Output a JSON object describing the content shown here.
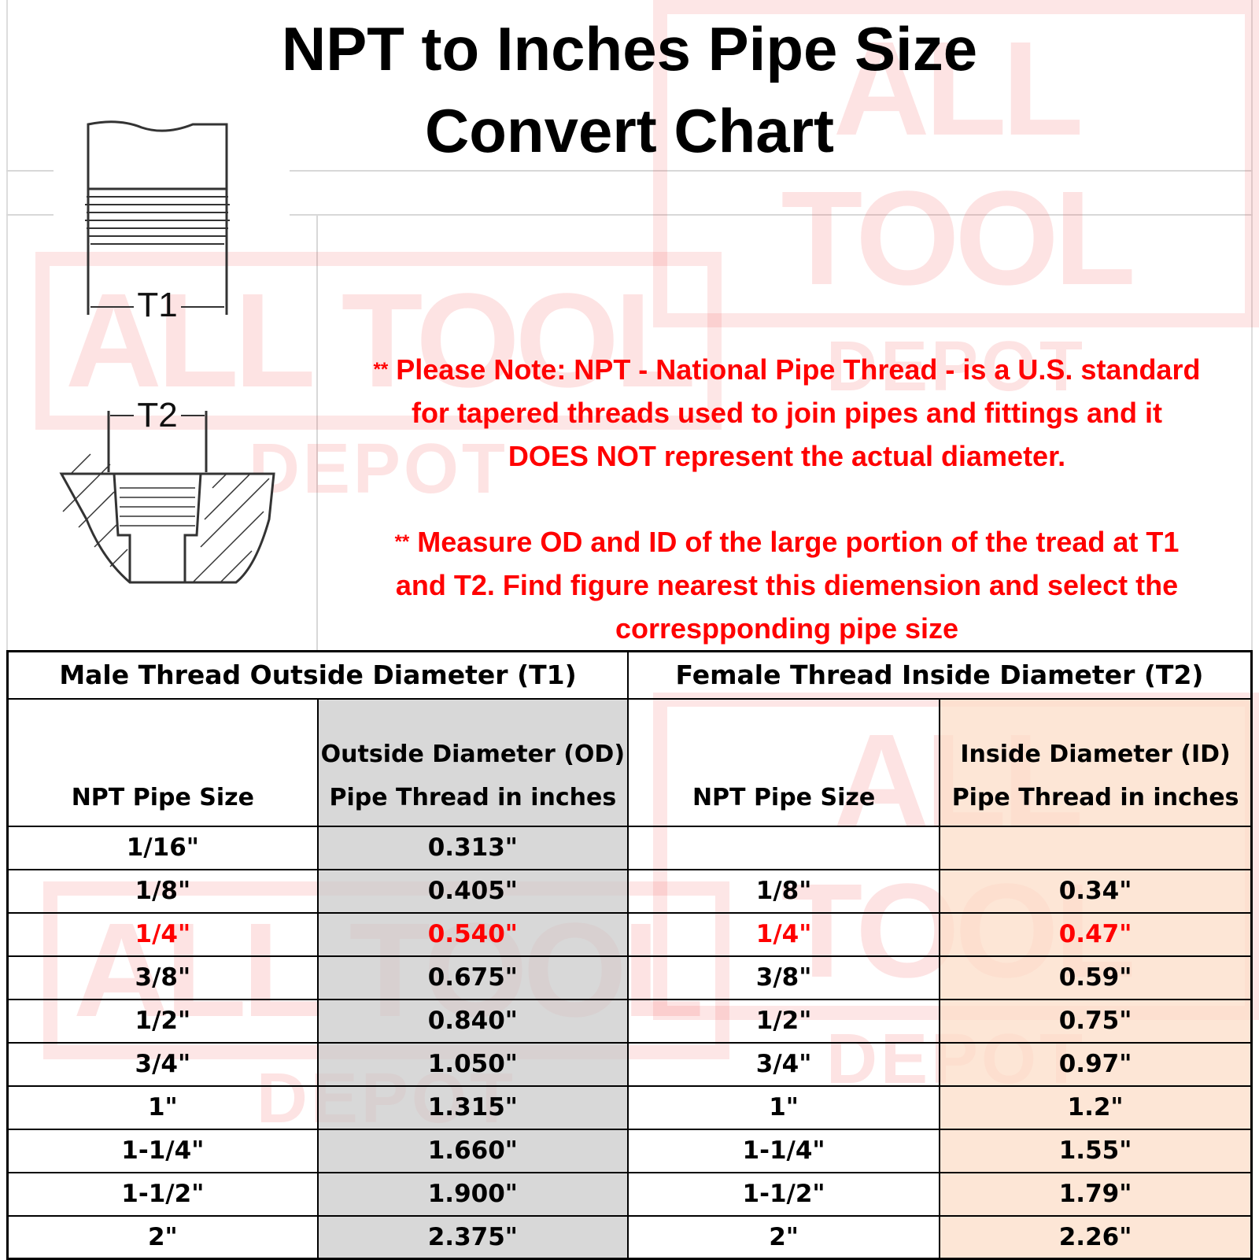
{
  "title": {
    "line1": "NPT to Inches Pipe Size",
    "line2": "Convert Chart"
  },
  "diagram": {
    "t1_label": "T1",
    "t2_label": "T2"
  },
  "watermark": {
    "logo_top": "ALL TOOL",
    "logo_bottom": "DEPOT"
  },
  "notes": [
    {
      "stars": "**",
      "lines": [
        "Please Note: NPT - National Pipe Thread - is a U.S. standard",
        "for tapered threads used to join pipes and fittings and it",
        "DOES NOT represent the actual diameter."
      ]
    },
    {
      "stars": "**",
      "lines": [
        "Measure OD and ID of the large portion of the tread at T1",
        "and T2. Find figure nearest this diemension and select the",
        "correspponding pipe size"
      ]
    }
  ],
  "table": {
    "male_header": "Male Thread Outside Diameter (T1)",
    "female_header": "Female Thread Inside Diameter (T2)",
    "columns": [
      {
        "line1": "",
        "line2": "NPT Pipe Size"
      },
      {
        "line1": "Outside Diameter (OD)",
        "line2": "Pipe Thread in inches"
      },
      {
        "line1": "",
        "line2": "NPT Pipe Size"
      },
      {
        "line1": "Inside Diameter (ID)",
        "line2": "Pipe Thread in inches"
      }
    ],
    "highlight_color": "#ff0000",
    "od_column_color": "#d9d9d9",
    "id_column_color": "#fce4d6",
    "rows": [
      {
        "npt_male": "1/16\"",
        "od": "0.313\"",
        "npt_female": "",
        "id": "",
        "highlight": false
      },
      {
        "npt_male": "1/8\"",
        "od": "0.405\"",
        "npt_female": "1/8\"",
        "id": "0.34\"",
        "highlight": false
      },
      {
        "npt_male": "1/4\"",
        "od": "0.540\"",
        "npt_female": "1/4\"",
        "id": "0.47\"",
        "highlight": true
      },
      {
        "npt_male": "3/8\"",
        "od": "0.675\"",
        "npt_female": "3/8\"",
        "id": "0.59\"",
        "highlight": false
      },
      {
        "npt_male": "1/2\"",
        "od": "0.840\"",
        "npt_female": "1/2\"",
        "id": "0.75\"",
        "highlight": false
      },
      {
        "npt_male": "3/4\"",
        "od": "1.050\"",
        "npt_female": "3/4\"",
        "id": "0.97\"",
        "highlight": false
      },
      {
        "npt_male": "1\"",
        "od": "1.315\"",
        "npt_female": "1\"",
        "id": "1.2\"",
        "highlight": false
      },
      {
        "npt_male": "1-1/4\"",
        "od": "1.660\"",
        "npt_female": "1-1/4\"",
        "id": "1.55\"",
        "highlight": false
      },
      {
        "npt_male": "1-1/2\"",
        "od": "1.900\"",
        "npt_female": "1-1/2\"",
        "id": "1.79\"",
        "highlight": false
      },
      {
        "npt_male": "2\"",
        "od": "2.375\"",
        "npt_female": "2\"",
        "id": "2.26\"",
        "highlight": false
      }
    ]
  }
}
